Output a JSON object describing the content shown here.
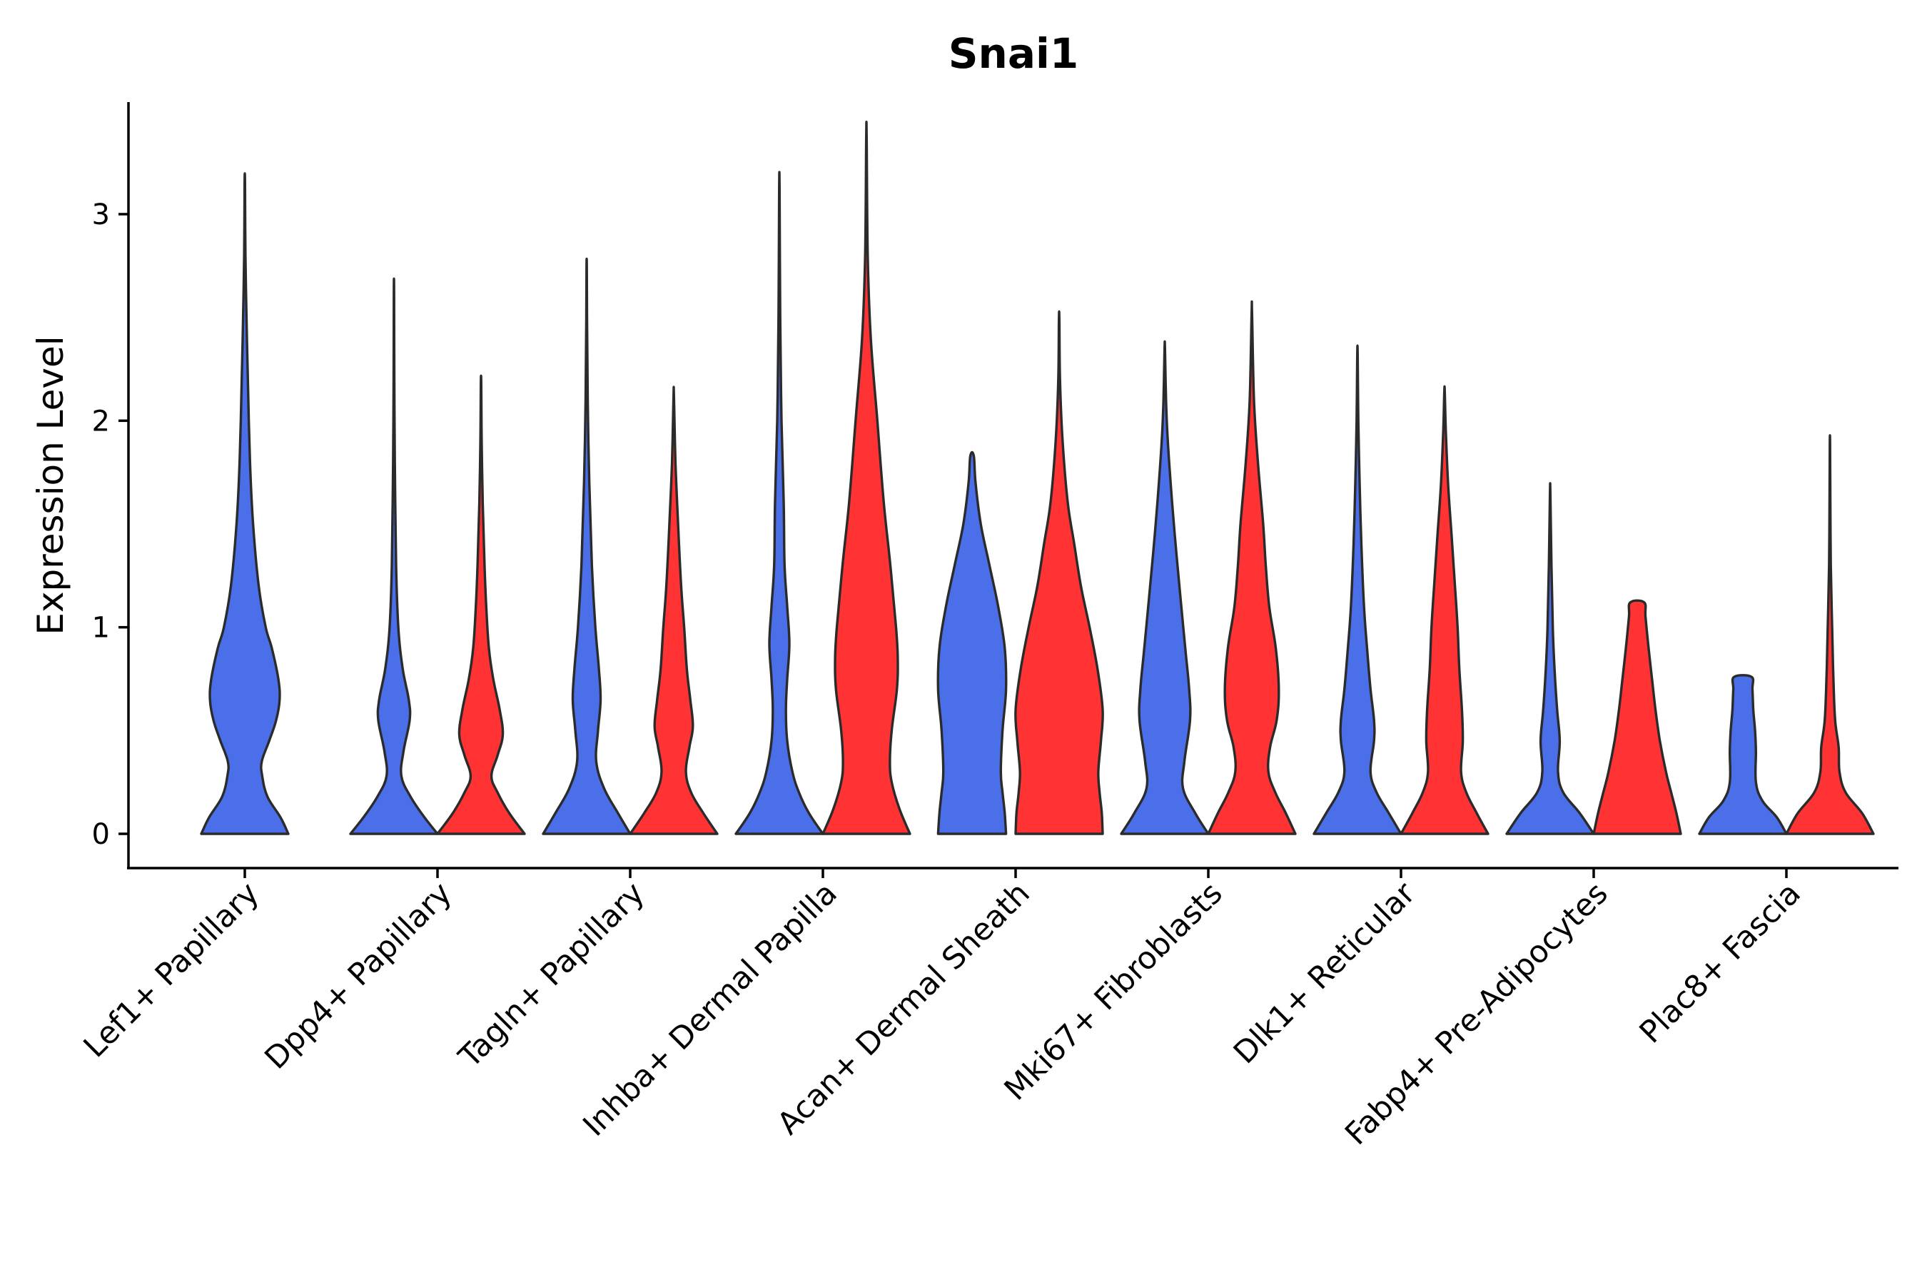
{
  "chart_data": {
    "type": "violin",
    "title": "Snai1",
    "xlabel": "",
    "ylabel": "Expression Level",
    "ylim": [
      -0.17,
      3.55
    ],
    "yticks": [
      0,
      1,
      2,
      3
    ],
    "grid": false,
    "legend": "none",
    "categories": [
      "Lef1+ Papillary",
      "Dpp4+ Papillary",
      "Tagln+ Papillary",
      "Inhba+ Dermal Papilla",
      "Acan+ Dermal Sheath",
      "Mki67+ Fibroblasts",
      "Dlk1+ Reticular",
      "Fabp4+ Pre-Adipocytes",
      "Plac8+ Fascia"
    ],
    "groups": [
      {
        "name": "group-1",
        "color": "#4a6fe8"
      },
      {
        "name": "group-2",
        "color": "#ff3333"
      }
    ],
    "violins": [
      {
        "category": 0,
        "group": 0,
        "max": 3.15,
        "profile": [
          [
            0,
            1.0
          ],
          [
            0.08,
            0.82
          ],
          [
            0.18,
            0.52
          ],
          [
            0.28,
            0.4
          ],
          [
            0.35,
            0.39
          ],
          [
            0.45,
            0.56
          ],
          [
            0.55,
            0.72
          ],
          [
            0.65,
            0.8
          ],
          [
            0.75,
            0.77
          ],
          [
            0.9,
            0.62
          ],
          [
            1.0,
            0.48
          ],
          [
            1.2,
            0.32
          ],
          [
            1.5,
            0.19
          ],
          [
            1.8,
            0.12
          ],
          [
            2.2,
            0.07
          ],
          [
            2.5,
            0.04
          ],
          [
            2.8,
            0.015
          ],
          [
            3.15,
            0.005
          ]
        ]
      },
      {
        "category": 1,
        "group": 0,
        "max": 2.63,
        "profile": [
          [
            0,
            1.0
          ],
          [
            0.08,
            0.7
          ],
          [
            0.18,
            0.38
          ],
          [
            0.28,
            0.17
          ],
          [
            0.4,
            0.22
          ],
          [
            0.55,
            0.36
          ],
          [
            0.65,
            0.34
          ],
          [
            0.8,
            0.2
          ],
          [
            1.0,
            0.1
          ],
          [
            1.3,
            0.05
          ],
          [
            1.8,
            0.02
          ],
          [
            2.2,
            0.008
          ],
          [
            2.63,
            0.004
          ]
        ]
      },
      {
        "category": 1,
        "group": 1,
        "max": 2.18,
        "profile": [
          [
            0,
            1.0
          ],
          [
            0.1,
            0.65
          ],
          [
            0.2,
            0.38
          ],
          [
            0.28,
            0.24
          ],
          [
            0.38,
            0.38
          ],
          [
            0.48,
            0.5
          ],
          [
            0.6,
            0.43
          ],
          [
            0.75,
            0.28
          ],
          [
            0.9,
            0.18
          ],
          [
            1.1,
            0.12
          ],
          [
            1.3,
            0.08
          ],
          [
            1.6,
            0.04
          ],
          [
            1.9,
            0.015
          ],
          [
            2.18,
            0.005
          ]
        ]
      },
      {
        "category": 2,
        "group": 0,
        "max": 2.75,
        "profile": [
          [
            0,
            1.0
          ],
          [
            0.1,
            0.72
          ],
          [
            0.22,
            0.4
          ],
          [
            0.35,
            0.22
          ],
          [
            0.5,
            0.26
          ],
          [
            0.65,
            0.32
          ],
          [
            0.8,
            0.28
          ],
          [
            1.0,
            0.2
          ],
          [
            1.3,
            0.12
          ],
          [
            1.7,
            0.06
          ],
          [
            2.1,
            0.025
          ],
          [
            2.5,
            0.008
          ],
          [
            2.75,
            0.004
          ]
        ]
      },
      {
        "category": 2,
        "group": 1,
        "max": 2.12,
        "profile": [
          [
            0,
            1.0
          ],
          [
            0.1,
            0.68
          ],
          [
            0.2,
            0.4
          ],
          [
            0.3,
            0.28
          ],
          [
            0.42,
            0.36
          ],
          [
            0.52,
            0.44
          ],
          [
            0.65,
            0.38
          ],
          [
            0.8,
            0.3
          ],
          [
            1.0,
            0.24
          ],
          [
            1.2,
            0.17
          ],
          [
            1.5,
            0.1
          ],
          [
            1.8,
            0.04
          ],
          [
            2.12,
            0.005
          ]
        ]
      },
      {
        "category": 3,
        "group": 0,
        "max": 3.12,
        "profile": [
          [
            0,
            1.0
          ],
          [
            0.1,
            0.68
          ],
          [
            0.2,
            0.45
          ],
          [
            0.3,
            0.3
          ],
          [
            0.45,
            0.18
          ],
          [
            0.6,
            0.15
          ],
          [
            0.75,
            0.18
          ],
          [
            0.92,
            0.23
          ],
          [
            1.1,
            0.18
          ],
          [
            1.3,
            0.12
          ],
          [
            1.6,
            0.1
          ],
          [
            2.0,
            0.05
          ],
          [
            2.5,
            0.02
          ],
          [
            3.12,
            0.005
          ]
        ]
      },
      {
        "category": 3,
        "group": 1,
        "max": 3.37,
        "profile": [
          [
            0,
            1.0
          ],
          [
            0.12,
            0.76
          ],
          [
            0.25,
            0.58
          ],
          [
            0.35,
            0.54
          ],
          [
            0.5,
            0.58
          ],
          [
            0.7,
            0.7
          ],
          [
            0.85,
            0.72
          ],
          [
            1.0,
            0.68
          ],
          [
            1.3,
            0.55
          ],
          [
            1.6,
            0.4
          ],
          [
            2.0,
            0.25
          ],
          [
            2.4,
            0.1
          ],
          [
            2.8,
            0.03
          ],
          [
            3.37,
            0.005
          ]
        ]
      },
      {
        "category": 4,
        "group": 0,
        "max": 1.83,
        "profile": [
          [
            0,
            0.78
          ],
          [
            0.1,
            0.75
          ],
          [
            0.2,
            0.7
          ],
          [
            0.3,
            0.66
          ],
          [
            0.5,
            0.7
          ],
          [
            0.7,
            0.78
          ],
          [
            0.9,
            0.75
          ],
          [
            1.1,
            0.6
          ],
          [
            1.3,
            0.4
          ],
          [
            1.5,
            0.2
          ],
          [
            1.7,
            0.08
          ],
          [
            1.83,
            0.04
          ]
        ]
      },
      {
        "category": 4,
        "group": 1,
        "max": 2.49,
        "profile": [
          [
            0,
            1.0
          ],
          [
            0.1,
            0.98
          ],
          [
            0.2,
            0.93
          ],
          [
            0.3,
            0.9
          ],
          [
            0.45,
            0.96
          ],
          [
            0.6,
            1.0
          ],
          [
            0.8,
            0.88
          ],
          [
            1.0,
            0.7
          ],
          [
            1.2,
            0.5
          ],
          [
            1.4,
            0.35
          ],
          [
            1.6,
            0.2
          ],
          [
            1.9,
            0.08
          ],
          [
            2.2,
            0.02
          ],
          [
            2.49,
            0.005
          ]
        ]
      },
      {
        "category": 5,
        "group": 0,
        "max": 2.35,
        "profile": [
          [
            0,
            1.0
          ],
          [
            0.1,
            0.7
          ],
          [
            0.22,
            0.42
          ],
          [
            0.35,
            0.45
          ],
          [
            0.55,
            0.58
          ],
          [
            0.7,
            0.56
          ],
          [
            0.9,
            0.47
          ],
          [
            1.1,
            0.38
          ],
          [
            1.35,
            0.27
          ],
          [
            1.6,
            0.17
          ],
          [
            1.9,
            0.07
          ],
          [
            2.1,
            0.03
          ],
          [
            2.35,
            0.005
          ]
        ]
      },
      {
        "category": 5,
        "group": 1,
        "max": 2.52,
        "profile": [
          [
            0,
            1.0
          ],
          [
            0.1,
            0.78
          ],
          [
            0.2,
            0.54
          ],
          [
            0.3,
            0.38
          ],
          [
            0.42,
            0.42
          ],
          [
            0.55,
            0.57
          ],
          [
            0.7,
            0.62
          ],
          [
            0.9,
            0.55
          ],
          [
            1.1,
            0.4
          ],
          [
            1.3,
            0.32
          ],
          [
            1.5,
            0.26
          ],
          [
            1.8,
            0.14
          ],
          [
            2.1,
            0.05
          ],
          [
            2.52,
            0.005
          ]
        ]
      },
      {
        "category": 6,
        "group": 0,
        "max": 2.32,
        "profile": [
          [
            0,
            1.0
          ],
          [
            0.1,
            0.72
          ],
          [
            0.2,
            0.44
          ],
          [
            0.3,
            0.3
          ],
          [
            0.45,
            0.38
          ],
          [
            0.55,
            0.38
          ],
          [
            0.7,
            0.3
          ],
          [
            0.9,
            0.22
          ],
          [
            1.1,
            0.15
          ],
          [
            1.4,
            0.09
          ],
          [
            1.7,
            0.05
          ],
          [
            2.0,
            0.02
          ],
          [
            2.32,
            0.005
          ]
        ]
      },
      {
        "category": 6,
        "group": 1,
        "max": 2.14,
        "profile": [
          [
            0,
            1.0
          ],
          [
            0.1,
            0.74
          ],
          [
            0.2,
            0.5
          ],
          [
            0.3,
            0.38
          ],
          [
            0.45,
            0.42
          ],
          [
            0.6,
            0.4
          ],
          [
            0.8,
            0.34
          ],
          [
            1.0,
            0.3
          ],
          [
            1.2,
            0.24
          ],
          [
            1.45,
            0.16
          ],
          [
            1.7,
            0.08
          ],
          [
            1.95,
            0.03
          ],
          [
            2.14,
            0.005
          ]
        ]
      },
      {
        "category": 7,
        "group": 0,
        "max": 1.65,
        "profile": [
          [
            0,
            1.0
          ],
          [
            0.1,
            0.68
          ],
          [
            0.2,
            0.3
          ],
          [
            0.3,
            0.18
          ],
          [
            0.45,
            0.22
          ],
          [
            0.6,
            0.16
          ],
          [
            0.8,
            0.1
          ],
          [
            1.0,
            0.06
          ],
          [
            1.3,
            0.03
          ],
          [
            1.65,
            0.005
          ]
        ]
      },
      {
        "category": 7,
        "group": 1,
        "max": 1.12,
        "profile": [
          [
            0,
            1.0
          ],
          [
            0.1,
            0.9
          ],
          [
            0.2,
            0.78
          ],
          [
            0.3,
            0.66
          ],
          [
            0.45,
            0.52
          ],
          [
            0.6,
            0.42
          ],
          [
            0.75,
            0.34
          ],
          [
            0.9,
            0.26
          ],
          [
            1.05,
            0.19
          ],
          [
            1.12,
            0.16
          ]
        ]
      },
      {
        "category": 8,
        "group": 0,
        "max": 0.76,
        "profile": [
          [
            0,
            1.0
          ],
          [
            0.08,
            0.78
          ],
          [
            0.16,
            0.45
          ],
          [
            0.25,
            0.3
          ],
          [
            0.4,
            0.3
          ],
          [
            0.5,
            0.28
          ],
          [
            0.6,
            0.24
          ],
          [
            0.7,
            0.22
          ],
          [
            0.76,
            0.2
          ]
        ]
      },
      {
        "category": 8,
        "group": 1,
        "max": 1.89,
        "profile": [
          [
            0,
            1.0
          ],
          [
            0.1,
            0.74
          ],
          [
            0.2,
            0.36
          ],
          [
            0.3,
            0.22
          ],
          [
            0.42,
            0.2
          ],
          [
            0.55,
            0.12
          ],
          [
            0.75,
            0.08
          ],
          [
            1.0,
            0.05
          ],
          [
            1.3,
            0.02
          ],
          [
            1.6,
            0.01
          ],
          [
            1.89,
            0.004
          ]
        ]
      }
    ]
  }
}
